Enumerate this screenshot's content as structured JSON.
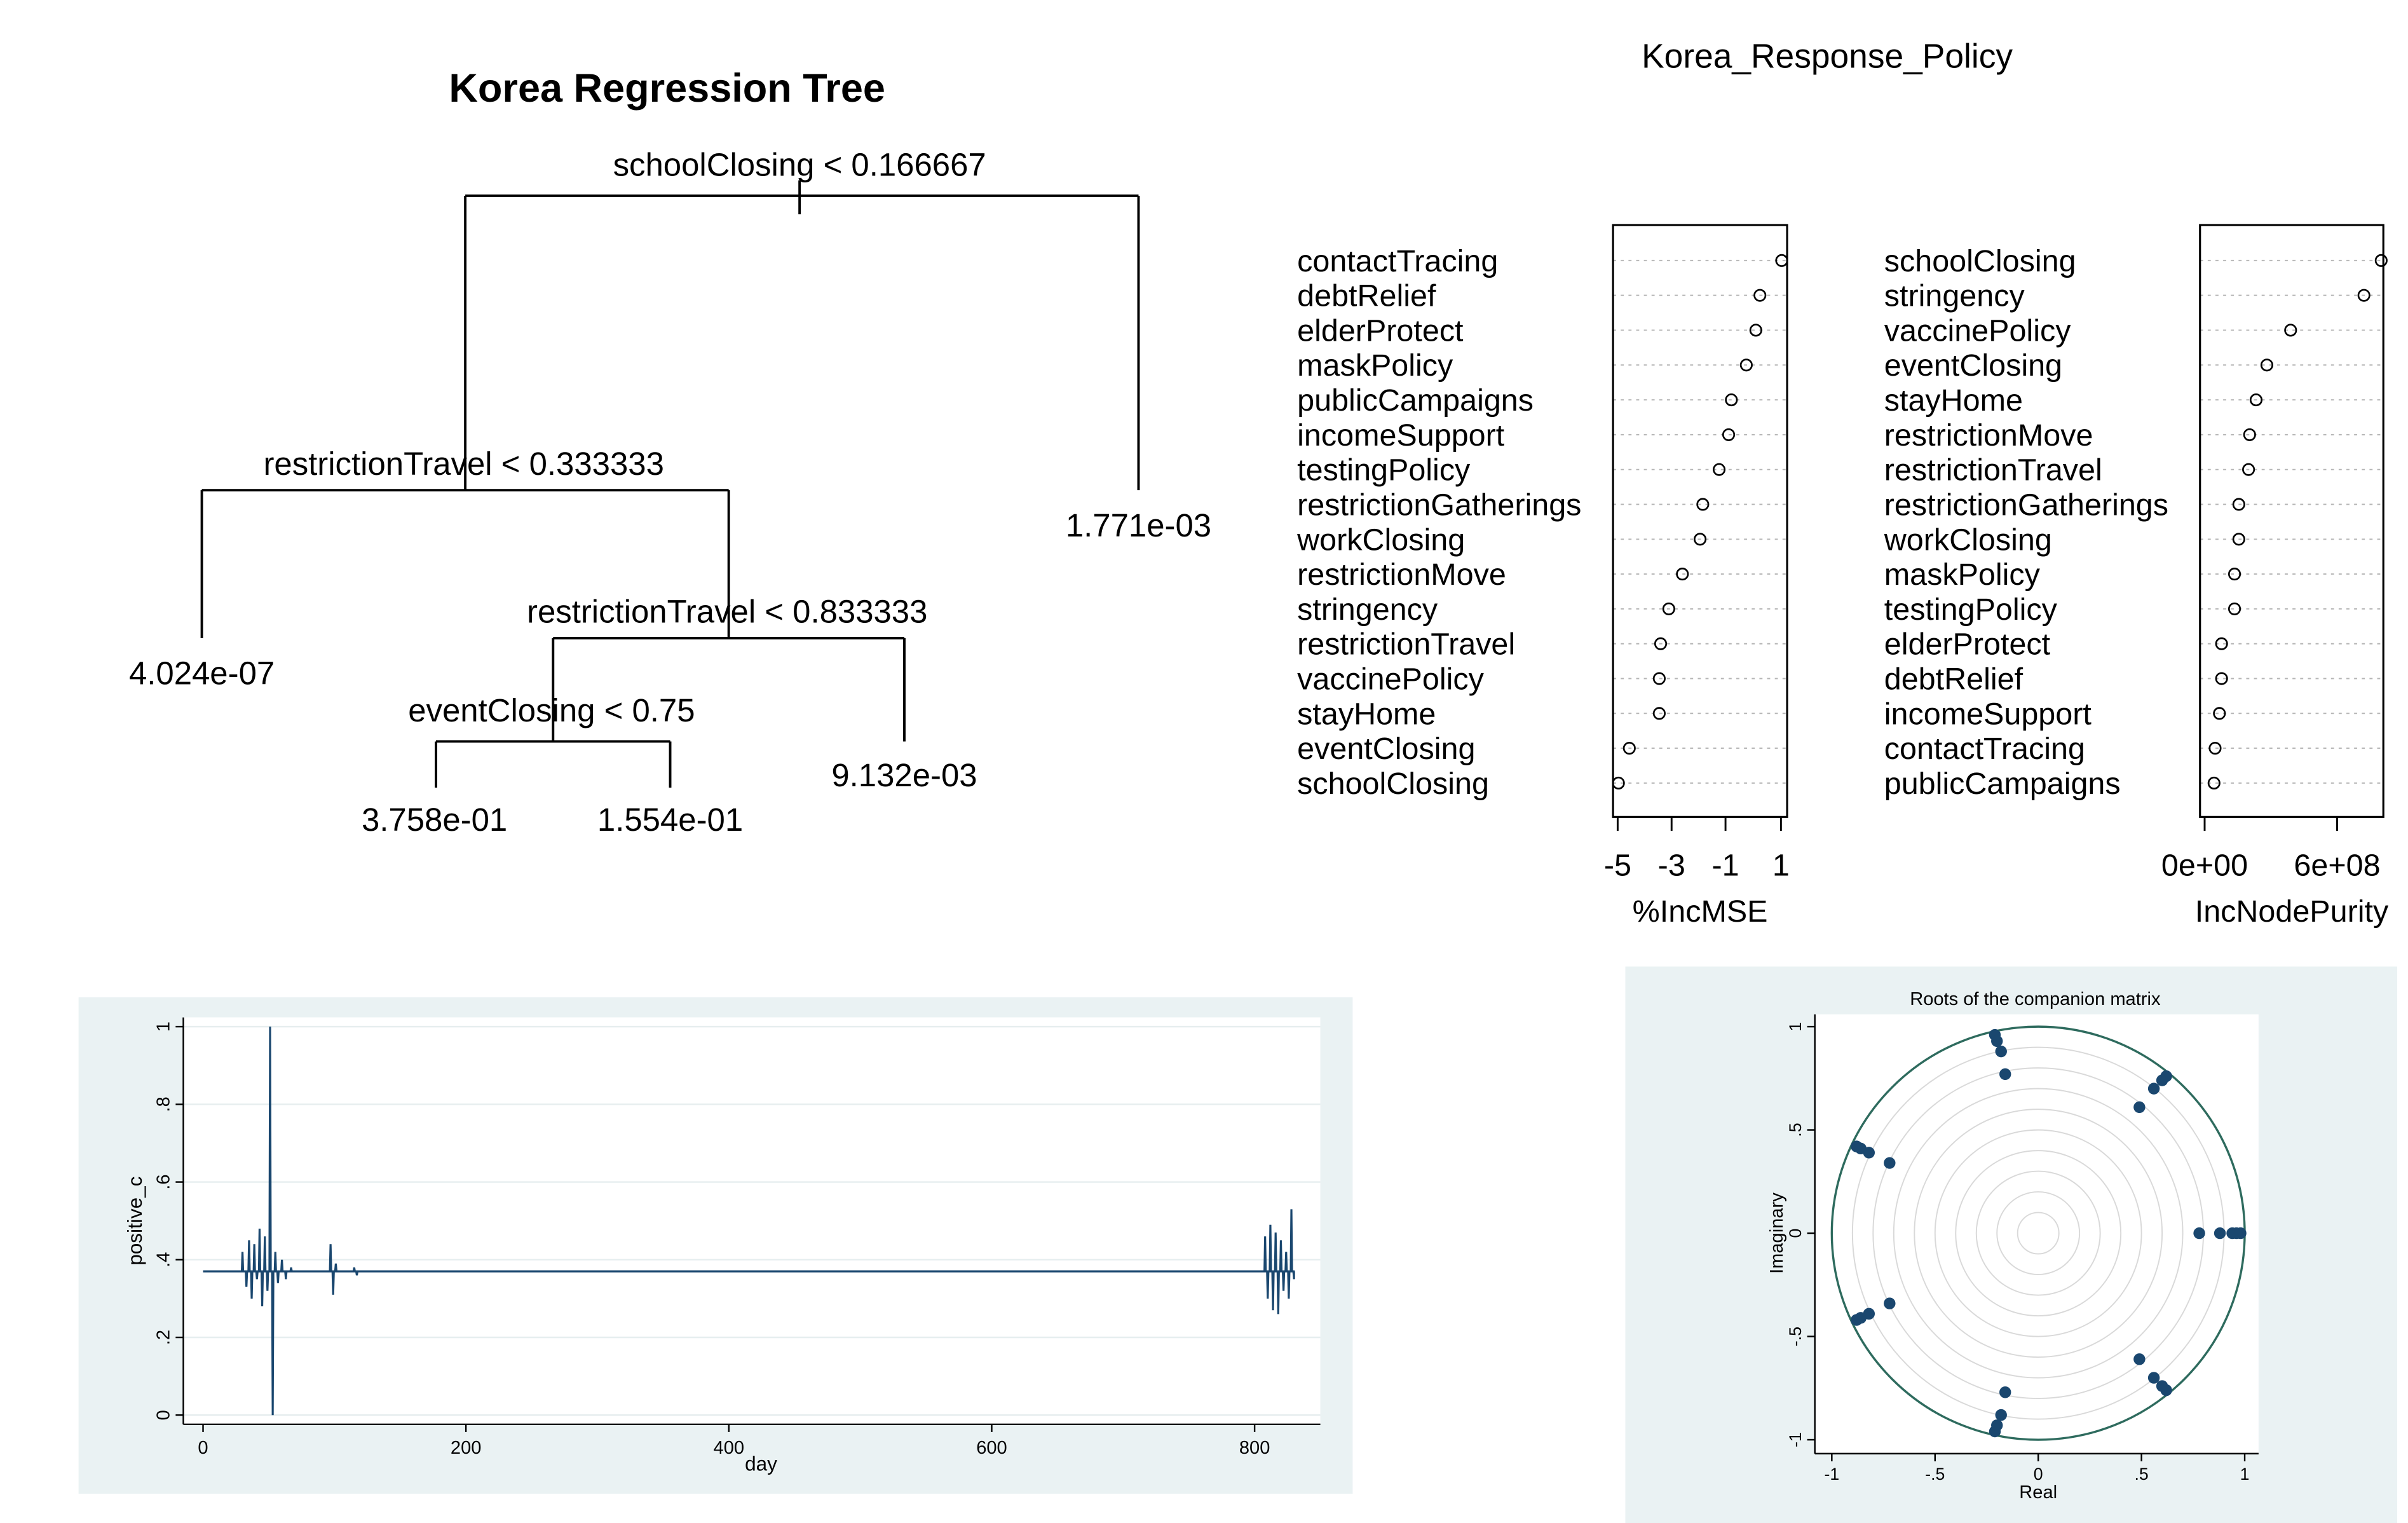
{
  "chart_data": [
    {
      "type": "tree",
      "title": "Korea Regression Tree",
      "splits": [
        "schoolClosing < 0.166667",
        "restrictionTravel < 0.333333",
        "restrictionTravel < 0.833333",
        "eventClosing < 0.75"
      ],
      "leaves": [
        "4.024e-07",
        "3.758e-01",
        "1.554e-01",
        "9.132e-03",
        "1.771e-03"
      ]
    },
    {
      "type": "scatter",
      "title": "Korea_Response_Policy",
      "panels": [
        {
          "xlabel": "%IncMSE",
          "xticks": [
            "-5",
            "-3",
            "-1",
            "1"
          ],
          "xlim": [
            -5.2,
            1.2
          ],
          "labels": [
            "contactTracing",
            "debtRelief",
            "elderProtect",
            "maskPolicy",
            "publicCampaigns",
            "incomeSupport",
            "testingPolicy",
            "restrictionGatherings",
            "workClosing",
            "restrictionMove",
            "stringency",
            "restrictionTravel",
            "vaccinePolicy",
            "stayHome",
            "eventClosing",
            "schoolClosing"
          ],
          "values": [
            1.0,
            0.2,
            0.05,
            -0.3,
            -0.85,
            -0.95,
            -1.3,
            -1.9,
            -2.0,
            -2.65,
            -3.15,
            -3.45,
            -3.5,
            -3.5,
            -4.6,
            -5.0
          ]
        },
        {
          "xlabel": "IncNodePurity",
          "xticks": [
            "0e+00",
            "6e+08"
          ],
          "xlim": [
            -50000000.0,
            800000000.0
          ],
          "labels": [
            "schoolClosing",
            "stringency",
            "vaccinePolicy",
            "eventClosing",
            "stayHome",
            "restrictionMove",
            "restrictionTravel",
            "restrictionGatherings",
            "workClosing",
            "maskPolicy",
            "testingPolicy",
            "elderProtect",
            "debtRelief",
            "incomeSupport",
            "contactTracing",
            "publicCampaigns"
          ],
          "values": [
            790000000.0,
            710000000.0,
            370000000.0,
            260000000.0,
            210000000.0,
            180000000.0,
            175000000.0,
            130000000.0,
            130000000.0,
            110000000.0,
            110000000.0,
            50000000.0,
            50000000.0,
            40000000.0,
            20000000.0,
            15000000.0
          ]
        }
      ]
    },
    {
      "type": "line",
      "xlabel": "day",
      "ylabel": "positive_c",
      "xticks": [
        "0",
        "200",
        "400",
        "600",
        "800"
      ],
      "yticks": [
        "0",
        ".2",
        ".4",
        ".6",
        ".8",
        "1"
      ],
      "xlim": [
        -15,
        850
      ],
      "ylim": [
        0,
        1
      ],
      "baseline": 0.37,
      "x_range": [
        0,
        830
      ],
      "spikes": [
        {
          "x": 30,
          "y": 0.42
        },
        {
          "x": 33,
          "y": 0.33
        },
        {
          "x": 35,
          "y": 0.45
        },
        {
          "x": 37,
          "y": 0.3
        },
        {
          "x": 39,
          "y": 0.44
        },
        {
          "x": 41,
          "y": 0.35
        },
        {
          "x": 43,
          "y": 0.48
        },
        {
          "x": 45,
          "y": 0.28
        },
        {
          "x": 47,
          "y": 0.46
        },
        {
          "x": 49,
          "y": 0.32
        },
        {
          "x": 51,
          "y": 1.0
        },
        {
          "x": 53,
          "y": 0.0
        },
        {
          "x": 55,
          "y": 0.42
        },
        {
          "x": 57,
          "y": 0.34
        },
        {
          "x": 60,
          "y": 0.4
        },
        {
          "x": 63,
          "y": 0.35
        },
        {
          "x": 67,
          "y": 0.38
        },
        {
          "x": 97,
          "y": 0.44
        },
        {
          "x": 99,
          "y": 0.31
        },
        {
          "x": 101,
          "y": 0.39
        },
        {
          "x": 115,
          "y": 0.38
        },
        {
          "x": 117,
          "y": 0.36
        },
        {
          "x": 808,
          "y": 0.46
        },
        {
          "x": 810,
          "y": 0.3
        },
        {
          "x": 812,
          "y": 0.49
        },
        {
          "x": 814,
          "y": 0.27
        },
        {
          "x": 816,
          "y": 0.47
        },
        {
          "x": 818,
          "y": 0.26
        },
        {
          "x": 820,
          "y": 0.45
        },
        {
          "x": 822,
          "y": 0.32
        },
        {
          "x": 824,
          "y": 0.42
        },
        {
          "x": 826,
          "y": 0.3
        },
        {
          "x": 828,
          "y": 0.53
        },
        {
          "x": 830,
          "y": 0.35
        }
      ]
    },
    {
      "type": "scatter",
      "title": "Roots of the companion matrix",
      "xlabel": "Real",
      "ylabel": "Imaginary",
      "xticks": [
        "-1",
        "-.5",
        "0",
        ".5",
        "1"
      ],
      "yticks": [
        "-1",
        "-.5",
        "0",
        ".5",
        "1"
      ],
      "xlim": [
        -1,
        1
      ],
      "ylim": [
        -1,
        1
      ],
      "colors": {
        "points": "#1a476f",
        "circle": "#2e6b5e",
        "grid": "#d9d9d9"
      },
      "points": [
        {
          "x": 0.98,
          "y": 0.0
        },
        {
          "x": 0.96,
          "y": 0.0
        },
        {
          "x": 0.94,
          "y": 0.0
        },
        {
          "x": 0.88,
          "y": 0.0
        },
        {
          "x": 0.78,
          "y": 0.0
        },
        {
          "x": -0.21,
          "y": 0.96
        },
        {
          "x": -0.2,
          "y": 0.93
        },
        {
          "x": -0.18,
          "y": 0.88
        },
        {
          "x": -0.16,
          "y": 0.77
        },
        {
          "x": -0.21,
          "y": -0.96
        },
        {
          "x": -0.2,
          "y": -0.93
        },
        {
          "x": -0.18,
          "y": -0.88
        },
        {
          "x": -0.16,
          "y": -0.77
        },
        {
          "x": 0.62,
          "y": 0.76
        },
        {
          "x": 0.6,
          "y": 0.74
        },
        {
          "x": 0.56,
          "y": 0.7
        },
        {
          "x": 0.49,
          "y": 0.61
        },
        {
          "x": 0.62,
          "y": -0.76
        },
        {
          "x": 0.6,
          "y": -0.74
        },
        {
          "x": 0.56,
          "y": -0.7
        },
        {
          "x": 0.49,
          "y": -0.61
        },
        {
          "x": -0.88,
          "y": 0.42
        },
        {
          "x": -0.86,
          "y": 0.41
        },
        {
          "x": -0.82,
          "y": 0.39
        },
        {
          "x": -0.72,
          "y": 0.34
        },
        {
          "x": -0.88,
          "y": -0.42
        },
        {
          "x": -0.86,
          "y": -0.41
        },
        {
          "x": -0.82,
          "y": -0.39
        },
        {
          "x": -0.72,
          "y": -0.34
        }
      ]
    }
  ]
}
